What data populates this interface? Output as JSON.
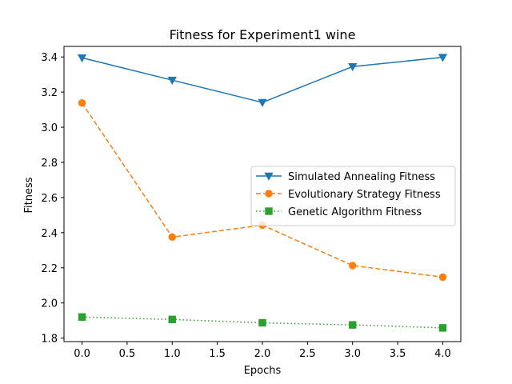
{
  "chart_data": {
    "type": "line",
    "title": "Fitness for Experiment1 wine",
    "xlabel": "Epochs",
    "ylabel": "Fitness",
    "xlim": [
      -0.2,
      4.2
    ],
    "ylim": [
      1.78,
      3.46
    ],
    "xticks": [
      "0.0",
      "0.5",
      "1.0",
      "1.5",
      "2.0",
      "2.5",
      "3.0",
      "3.5",
      "4.0"
    ],
    "yticks": [
      "1.8",
      "2.0",
      "2.2",
      "2.4",
      "2.6",
      "2.8",
      "3.0",
      "3.2",
      "3.4"
    ],
    "x": [
      0,
      1,
      2,
      3,
      4
    ],
    "grid": false,
    "legend_position": "center-right",
    "series": [
      {
        "name": "Simulated Annealing Fitness",
        "values": [
          3.395,
          3.268,
          3.141,
          3.345,
          3.398
        ],
        "color": "#1f77b4",
        "line_style": "solid",
        "marker": "triangle-down"
      },
      {
        "name": "Evolutionary Strategy Fitness",
        "values": [
          3.138,
          2.375,
          2.443,
          2.213,
          2.147
        ],
        "color": "#ff7f0e",
        "line_style": "dashed",
        "marker": "circle"
      },
      {
        "name": "Genetic Algorithm Fitness",
        "values": [
          1.92,
          1.906,
          1.887,
          1.875,
          1.858
        ],
        "color": "#2ca02c",
        "line_style": "dotted",
        "marker": "square"
      }
    ]
  }
}
